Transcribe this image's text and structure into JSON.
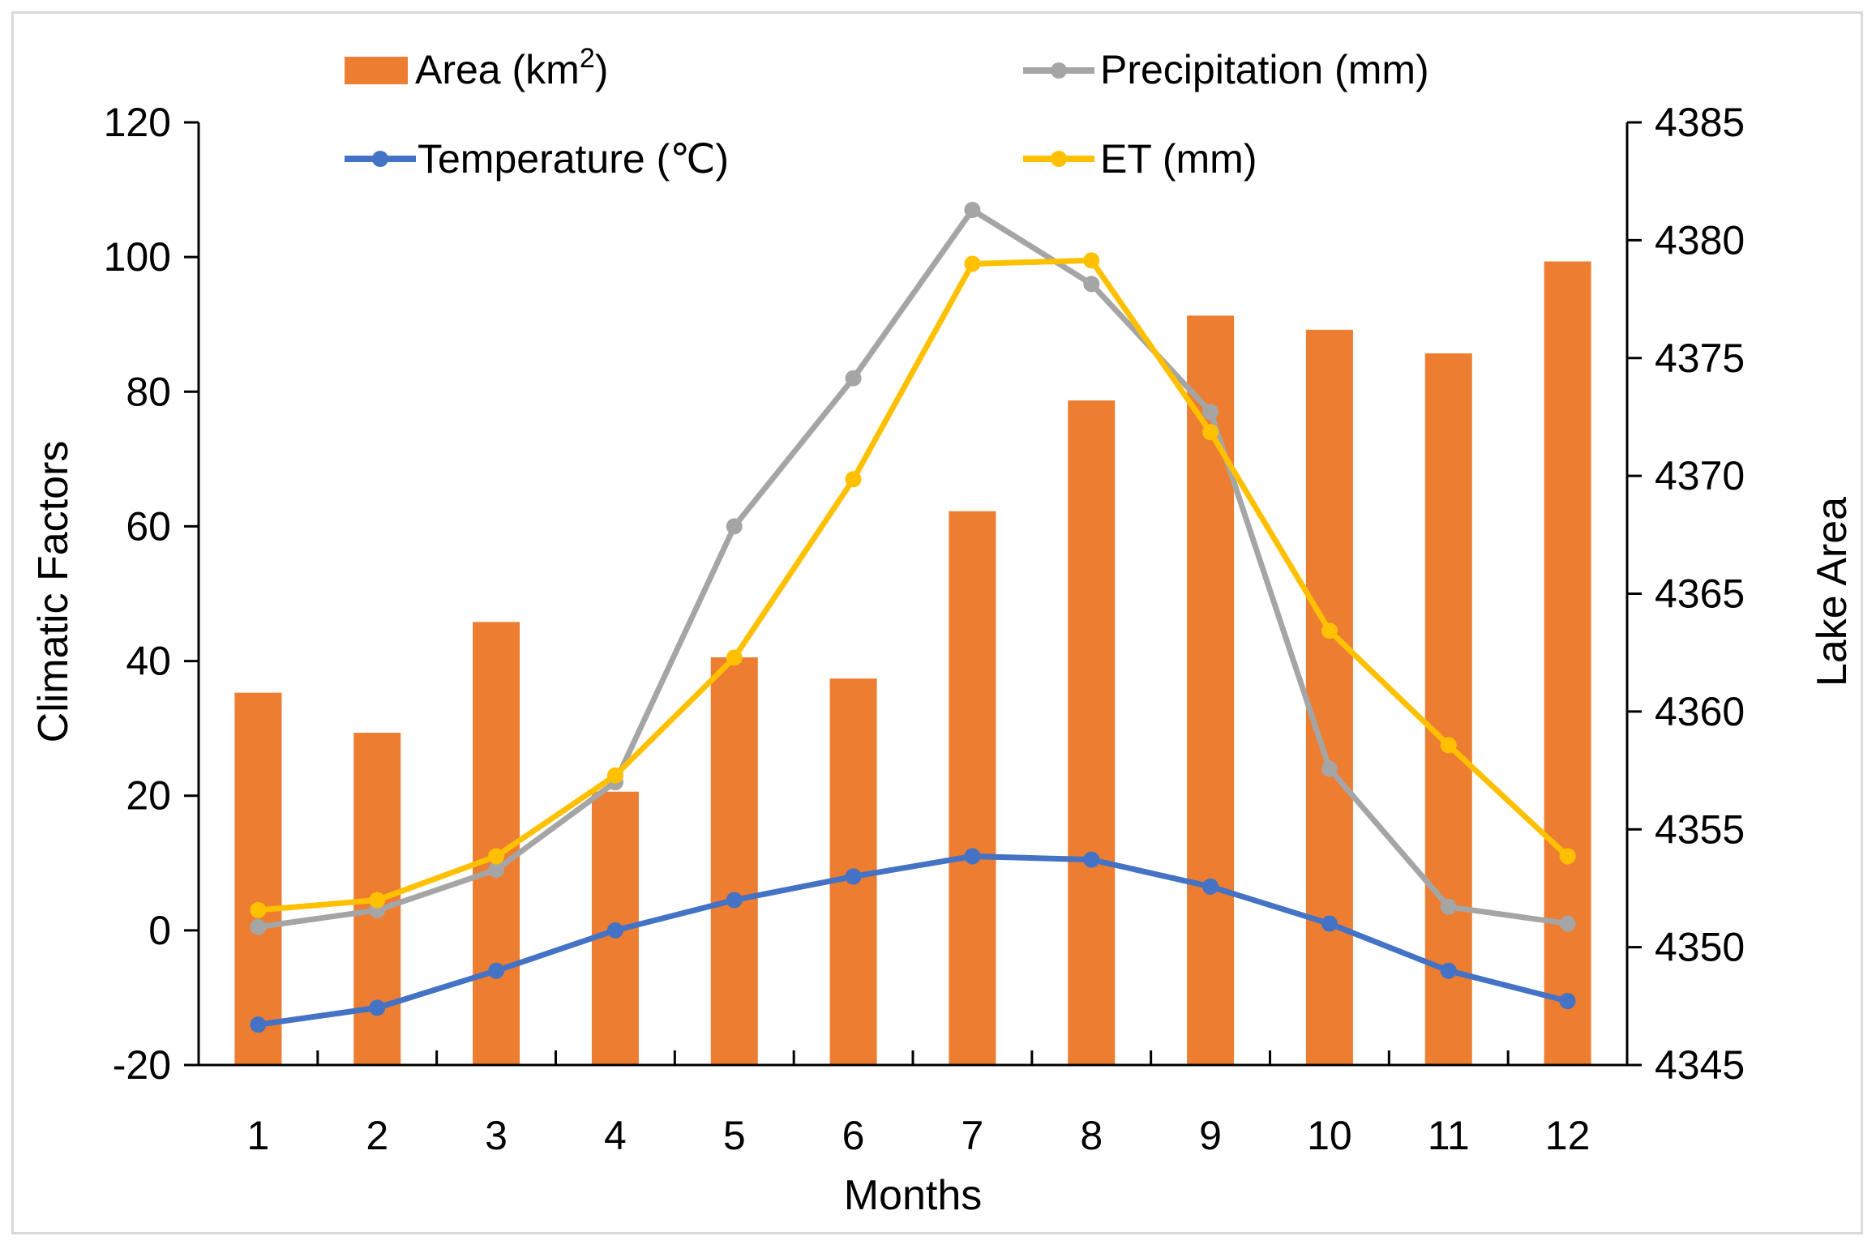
{
  "chart_data": {
    "type": "bar+line",
    "categories": [
      "1",
      "2",
      "3",
      "4",
      "5",
      "6",
      "7",
      "8",
      "9",
      "10",
      "11",
      "12"
    ],
    "xlabel": "Months",
    "ylabel_left": "Climatic Factors",
    "ylabel_right": "Lake Area",
    "ylim_left": [
      -20,
      120
    ],
    "ylim_right": [
      4345,
      4385
    ],
    "yticks_left": [
      "-20",
      "0",
      "20",
      "40",
      "60",
      "80",
      "100",
      "120"
    ],
    "yticks_right": [
      "4345",
      "4350",
      "4355",
      "4360",
      "4365",
      "4370",
      "4375",
      "4380",
      "4385"
    ],
    "series": [
      {
        "name": "Area (km2)",
        "kind": "bar",
        "axis": "right",
        "color": "#ED7D31",
        "values": [
          4360.8,
          4359.1,
          4363.8,
          4356.6,
          4362.3,
          4361.4,
          4368.5,
          4373.2,
          4376.8,
          4376.2,
          4375.2,
          4379.1
        ]
      },
      {
        "name": "Precipitation (mm)",
        "kind": "line",
        "axis": "left",
        "color": "#A5A5A5",
        "values": [
          0.5,
          3,
          9,
          22,
          60,
          82,
          107,
          96,
          77,
          24,
          3.5,
          1
        ]
      },
      {
        "name": "Temperature (℃)",
        "kind": "line",
        "axis": "left",
        "color": "#4472C4",
        "values": [
          -14,
          -11.5,
          -6,
          0,
          4.5,
          8,
          11,
          10.5,
          6.5,
          1,
          -6,
          -10.5
        ]
      },
      {
        "name": "ET (mm)",
        "kind": "line",
        "axis": "left",
        "color": "#FFC000",
        "values": [
          3,
          4.5,
          11,
          23,
          40.5,
          67,
          99,
          99.5,
          74,
          44.5,
          27.5,
          11
        ]
      }
    ],
    "legend": {
      "area_label": "Area (km",
      "area_sup": "2",
      "area_close": ")",
      "precip_label": "Precipitation (mm)",
      "temp_label": "Temperature (℃)",
      "et_label": "ET (mm)"
    }
  }
}
